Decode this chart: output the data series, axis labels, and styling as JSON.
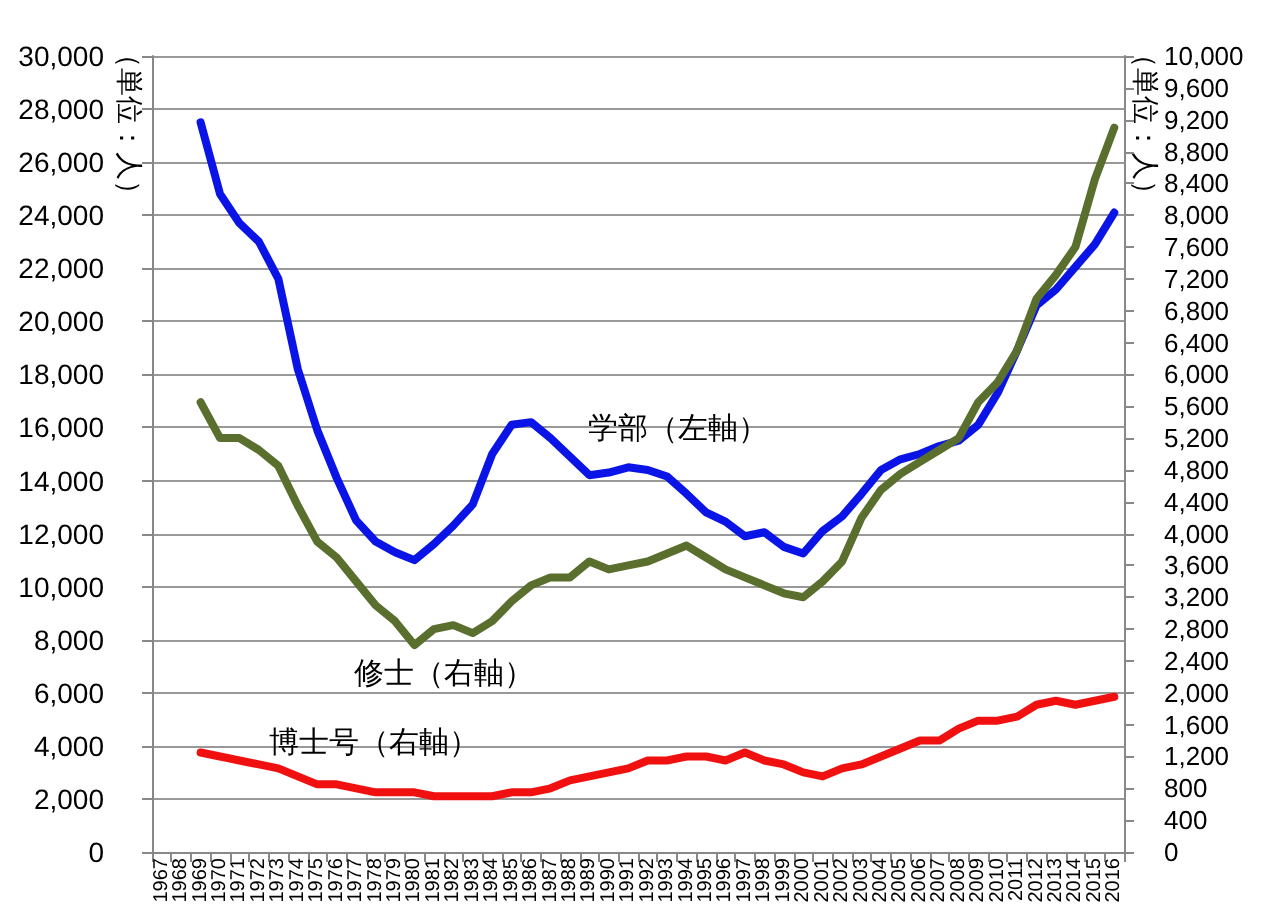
{
  "chart_data": {
    "type": "line",
    "ylabel": "（単位：人）",
    "y2label": "（単位：人）",
    "categories": [
      "1967",
      "1968",
      "1969",
      "1970",
      "1971",
      "1972",
      "1973",
      "1974",
      "1975",
      "1976",
      "1977",
      "1978",
      "1979",
      "1980",
      "1981",
      "1982",
      "1983",
      "1984",
      "1985",
      "1986",
      "1987",
      "1988",
      "1989",
      "1990",
      "1991",
      "1992",
      "1993",
      "1994",
      "1995",
      "1996",
      "1997",
      "1998",
      "1999",
      "2000",
      "2001",
      "2002",
      "2003",
      "2004",
      "2005",
      "2006",
      "2007",
      "2008",
      "2009",
      "2010",
      "2011",
      "2012",
      "2013",
      "2014",
      "2015",
      "2016"
    ],
    "series": [
      {
        "name": "学部（左軸）",
        "color": "#0a14e6",
        "values": [
          null,
          null,
          27500,
          24800,
          23700,
          23000,
          21600,
          18200,
          15900,
          14100,
          12500,
          11700,
          11300,
          11000,
          11600,
          12300,
          13100,
          15000,
          16100,
          16200,
          15600,
          14900,
          14200,
          14300,
          14500,
          14400,
          14150,
          13500,
          12800,
          12450,
          11900,
          12050,
          11500,
          11250,
          12100,
          12650,
          13500,
          14400,
          14800,
          15000,
          15300,
          15500,
          16100,
          17300,
          18900,
          20600,
          21200,
          22050,
          22900,
          24100
        ]
      },
      {
        "name": "修士（右軸）",
        "color": "#5a6e2e",
        "axis": "y2",
        "values": [
          null,
          null,
          5650,
          5200,
          5200,
          5050,
          4850,
          4350,
          3900,
          3700,
          3400,
          3100,
          2900,
          2600,
          2800,
          2850,
          2750,
          2900,
          3150,
          3350,
          3450,
          3450,
          3650,
          3550,
          3600,
          3650,
          3750,
          3850,
          3700,
          3550,
          3450,
          3350,
          3250,
          3200,
          3400,
          3650,
          4200,
          4550,
          4750,
          4900,
          5050,
          5200,
          5650,
          5900,
          6300,
          6950,
          7250,
          7600,
          8450,
          9100
        ]
      },
      {
        "name": "博士号（右軸）",
        "color": "#f01010",
        "axis": "y2",
        "values": [
          null,
          null,
          1250,
          1200,
          1150,
          1100,
          1050,
          950,
          850,
          850,
          800,
          750,
          750,
          750,
          700,
          700,
          700,
          700,
          750,
          750,
          800,
          900,
          950,
          1000,
          1050,
          1150,
          1150,
          1200,
          1200,
          1150,
          1250,
          1150,
          1100,
          1000,
          950,
          1050,
          1100,
          1200,
          1300,
          1400,
          1400,
          1550,
          1650,
          1650,
          1700,
          1850,
          1900,
          1850,
          1900,
          1950
        ]
      }
    ],
    "ylim": [
      0,
      30000
    ],
    "yticks": [
      0,
      {
        "value": 2000,
        "label": "2,000"
      },
      {
        "value": 4000,
        "label": "4,000"
      },
      {
        "value": 6000,
        "label": "6,000"
      },
      {
        "value": 8000,
        "label": "8,000"
      },
      {
        "value": 10000,
        "label": "10,000"
      },
      {
        "value": 12000,
        "label": "12,000"
      },
      {
        "value": 14000,
        "label": "14,000"
      },
      {
        "value": 16000,
        "label": "16,000"
      },
      {
        "value": 18000,
        "label": "18,000"
      },
      {
        "value": 20000,
        "label": "20,000"
      },
      {
        "value": 22000,
        "label": "22,000"
      },
      {
        "value": 24000,
        "label": "24,000"
      },
      {
        "value": 26000,
        "label": "26,000"
      },
      {
        "value": 28000,
        "label": "28,000"
      },
      {
        "value": 30000,
        "label": "30,000"
      }
    ],
    "y2lim": [
      0,
      10000
    ],
    "y2ticks": [
      0,
      400,
      800,
      {
        "value": 1200,
        "label": "1,200"
      },
      {
        "value": 1600,
        "label": "1,600"
      },
      {
        "value": 2000,
        "label": "2,000"
      },
      {
        "value": 2400,
        "label": "2,400"
      },
      {
        "value": 2800,
        "label": "2,800"
      },
      {
        "value": 3200,
        "label": "3,200"
      },
      {
        "value": 3600,
        "label": "3,600"
      },
      {
        "value": 4000,
        "label": "4,000"
      },
      {
        "value": 4400,
        "label": "4,400"
      },
      {
        "value": 4800,
        "label": "4,800"
      },
      {
        "value": 5200,
        "label": "5,200"
      },
      {
        "value": 5600,
        "label": "5,600"
      },
      {
        "value": 6000,
        "label": "6,000"
      },
      {
        "value": 6400,
        "label": "6,400"
      },
      {
        "value": 6800,
        "label": "6,800"
      },
      {
        "value": 7200,
        "label": "7,200"
      },
      {
        "value": 7600,
        "label": "7,600"
      },
      {
        "value": 8000,
        "label": "8,000"
      },
      {
        "value": 8400,
        "label": "8,400"
      },
      {
        "value": 8800,
        "label": "8,800"
      },
      {
        "value": 9200,
        "label": "9,200"
      },
      {
        "value": 9600,
        "label": "9,600"
      },
      {
        "value": 10000,
        "label": "10,000"
      }
    ],
    "grid": "y",
    "legend": false,
    "marker": "none",
    "line_style": "solid"
  }
}
